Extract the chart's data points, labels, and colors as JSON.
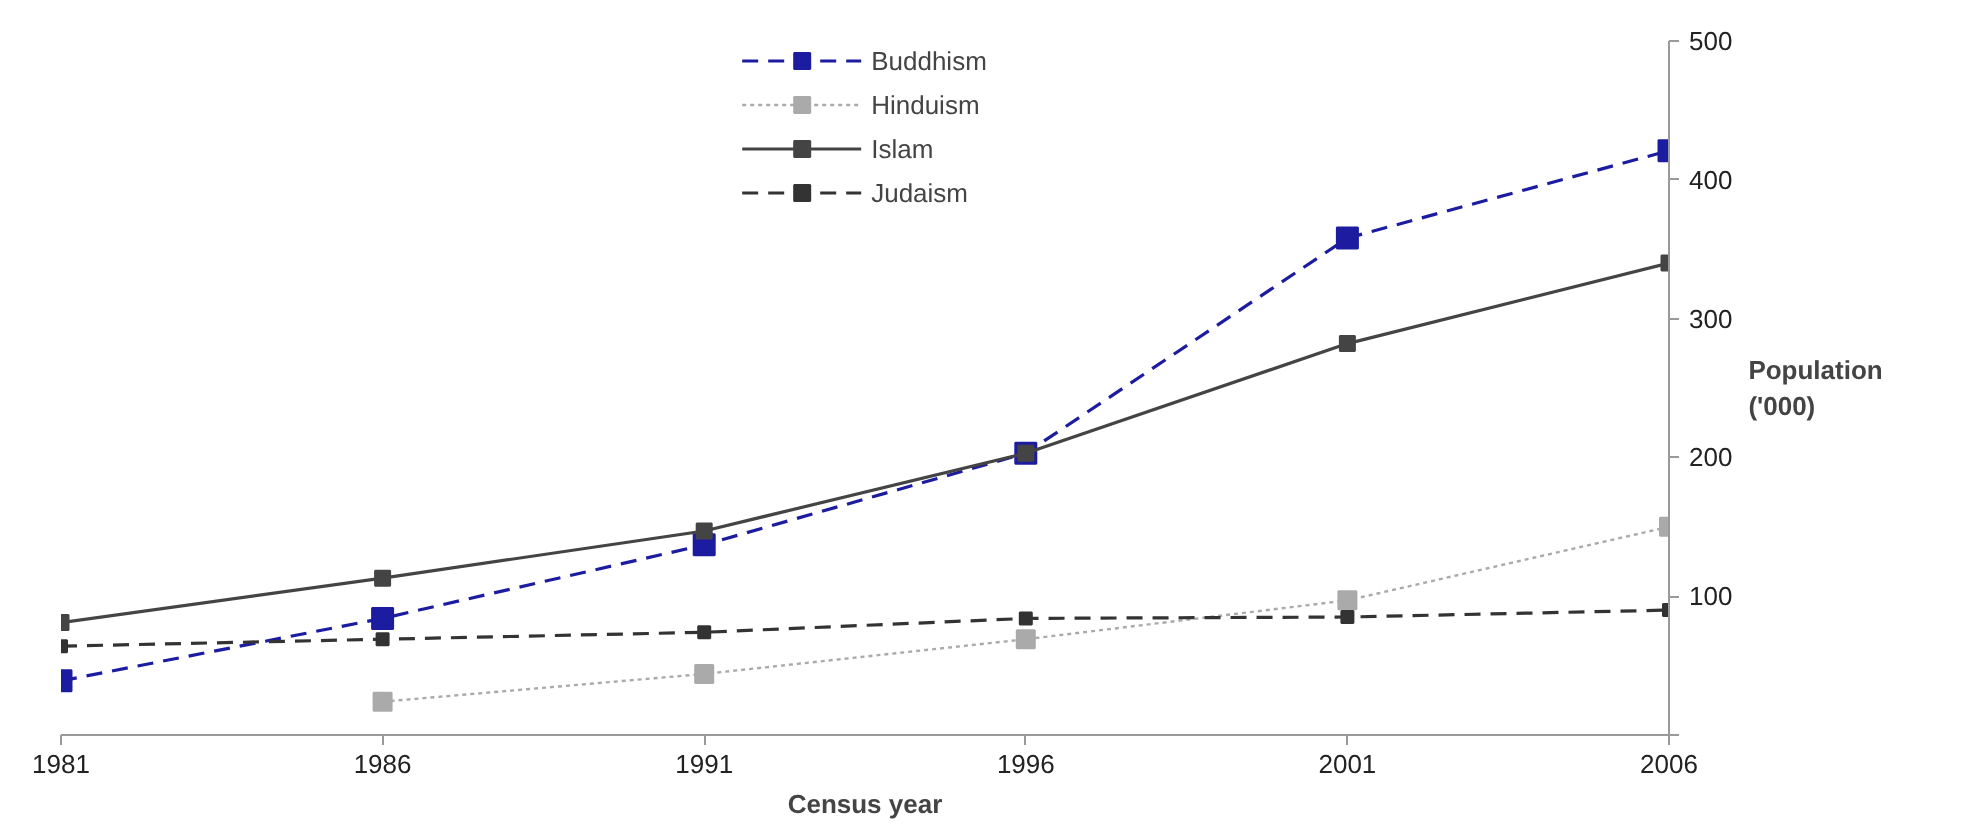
{
  "chart_data": {
    "type": "line",
    "xlabel": "Census year",
    "ylabel": "Population ('000)",
    "x": [
      1981,
      1986,
      1991,
      1996,
      2001,
      2006
    ],
    "xlim": [
      1981,
      2006
    ],
    "xticks": [
      1981,
      1986,
      1991,
      1996,
      2001,
      2006
    ],
    "ylim": [
      0,
      500
    ],
    "yticks": [
      {
        "value": 0,
        "label": null
      },
      100,
      200,
      300,
      400,
      500
    ],
    "grid": false,
    "legend": "top",
    "marker": "square",
    "series": [
      {
        "name": "Buddhism",
        "color": "#1c1ca0",
        "line_style": "dashed",
        "values": [
          39,
          84,
          137,
          203,
          358,
          421
        ]
      },
      {
        "name": "Hinduism",
        "color": "#aaaaaa",
        "line_style": "dotted",
        "values": [
          null,
          24,
          44,
          69,
          97,
          150
        ]
      },
      {
        "name": "Islam",
        "color": "#444444",
        "line_style": "solid",
        "values": [
          81,
          113,
          147,
          203,
          282,
          340
        ]
      },
      {
        "name": "Judaism",
        "color": "#333333",
        "line_style": "dashed",
        "values": [
          64,
          69,
          74,
          84,
          85,
          90
        ]
      }
    ]
  }
}
